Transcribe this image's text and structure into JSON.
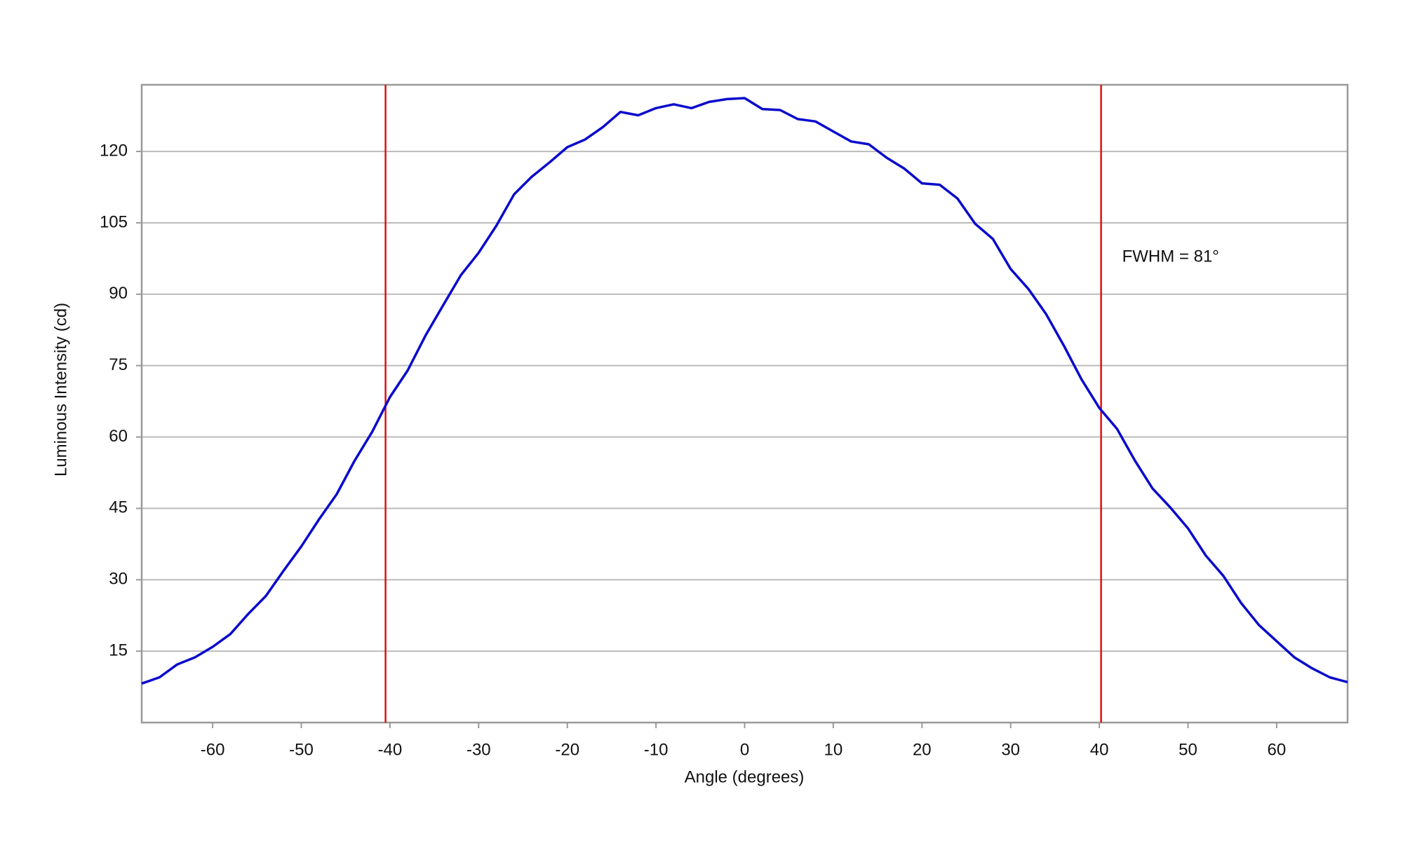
{
  "chart_data": {
    "type": "line",
    "x_label": "Angle (degrees)",
    "y_label": "Luminous Intensity (cd)",
    "annotation": "FWHM = 81°",
    "x": [
      -68,
      -66,
      -64,
      -62,
      -60,
      -58,
      -56,
      -54,
      -52,
      -50,
      -48,
      -46,
      -44,
      -42,
      -40,
      -38,
      -36,
      -34,
      -32,
      -30,
      -28,
      -26,
      -24,
      -22,
      -20,
      -18,
      -16,
      -14,
      -12,
      -10,
      -8,
      -6,
      -4,
      -2,
      0,
      2,
      4,
      6,
      8,
      10,
      12,
      14,
      16,
      18,
      20,
      22,
      24,
      26,
      28,
      30,
      32,
      34,
      36,
      38,
      40,
      42,
      44,
      46,
      48,
      50,
      52,
      54,
      56,
      58,
      60,
      62,
      64,
      66,
      68
    ],
    "series": [
      {
        "color": "#0a0acc",
        "values": [
          8.2,
          9.5,
          12.2,
          13.7,
          15.9,
          18.6,
          22.8,
          26.6,
          31.9,
          37,
          42.7,
          48,
          55,
          61.1,
          68.4,
          74,
          81.3,
          87.7,
          94,
          98.7,
          104.4,
          111,
          114.7,
          117.7,
          120.9,
          122.5,
          125.1,
          128.3,
          127.6,
          129.1,
          129.9,
          129.1,
          130.4,
          131,
          131.2,
          128.9,
          128.7,
          126.8,
          126.3,
          124.2,
          122.1,
          121.5,
          118.7,
          116.4,
          113.3,
          113,
          110.1,
          104.8,
          101.6,
          95.3,
          91.1,
          85.8,
          79.2,
          72.1,
          66.1,
          61.7,
          55.1,
          49.2,
          45.2,
          40.8,
          35.1,
          30.8,
          25.1,
          20.5,
          17.1,
          13.7,
          11.4,
          9.5,
          8.5
        ]
      }
    ],
    "vertical_lines": {
      "color": "#e01010",
      "values": [
        -40.5,
        40.2
      ]
    },
    "xlim": [
      -68,
      68
    ],
    "xticks": [
      -60,
      -50,
      -40,
      -30,
      -20,
      -10,
      0,
      10,
      20,
      30,
      40,
      50,
      60
    ],
    "ylim": [
      0,
      134
    ],
    "yticks": [
      15,
      30,
      45,
      60,
      75,
      90,
      105,
      120
    ],
    "grid": true
  }
}
